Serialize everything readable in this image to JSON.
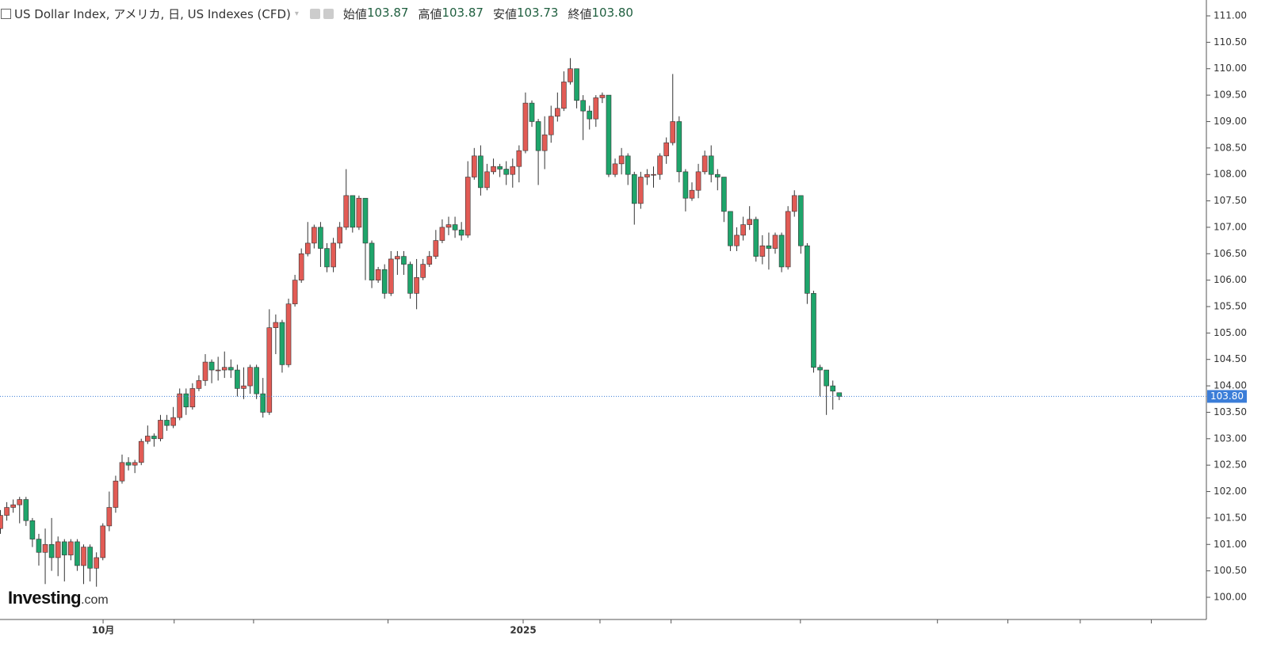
{
  "chart_data": {
    "type": "candlestick",
    "title": "US Dollar Index, アメリカ, 日, US Indexes (CFD)",
    "header_stats": [
      {
        "label": "始値",
        "value": "103.87"
      },
      {
        "label": "高値",
        "value": "103.87"
      },
      {
        "label": "安値",
        "value": "103.73"
      },
      {
        "label": "終値",
        "value": "103.80"
      }
    ],
    "logo": {
      "name": "Investing",
      "suffix": ".com"
    },
    "up_color": "#e25b55",
    "down_color": "#1ea56b",
    "last_price": {
      "value": 103.8,
      "label": "103.80"
    },
    "price_line_color": "#3b7dd8",
    "ylim": [
      99.58,
      111.3
    ],
    "yticks": [
      {
        "value": 100,
        "label": "100.00"
      },
      {
        "value": 100.5,
        "label": "100.50"
      },
      {
        "value": 101,
        "label": "101.00"
      },
      {
        "value": 101.5,
        "label": "101.50"
      },
      {
        "value": 102,
        "label": "102.00"
      },
      {
        "value": 102.5,
        "label": "102.50"
      },
      {
        "value": 103,
        "label": "103.00"
      },
      {
        "value": 103.5,
        "label": "103.50"
      },
      {
        "value": 104,
        "label": "104.00"
      },
      {
        "value": 104.5,
        "label": "104.50"
      },
      {
        "value": 105,
        "label": "105.00"
      },
      {
        "value": 105.5,
        "label": "105.50"
      },
      {
        "value": 106,
        "label": "106.00"
      },
      {
        "value": 106.5,
        "label": "106.50"
      },
      {
        "value": 107,
        "label": "107.00"
      },
      {
        "value": 107.5,
        "label": "107.50"
      },
      {
        "value": 108,
        "label": "108.00"
      },
      {
        "value": 108.5,
        "label": "108.50"
      },
      {
        "value": 109,
        "label": "109.00"
      },
      {
        "value": 109.5,
        "label": "109.50"
      },
      {
        "value": 110,
        "label": "110.00"
      },
      {
        "value": 110.5,
        "label": "110.50"
      },
      {
        "value": 111,
        "label": "111.00"
      }
    ],
    "xlim": [
      0,
      188.4
    ],
    "xticks": [
      {
        "value": 16.1,
        "label": "10月"
      },
      {
        "value": 81.7,
        "label": "2025"
      }
    ],
    "minor_xticks": [
      27.2,
      39.6,
      60.6,
      93.7,
      104.8,
      125,
      146.4,
      157.4,
      168.7,
      179.8
    ],
    "open": [
      101.3,
      101.55,
      101.7,
      101.75,
      101.85,
      101.45,
      101.1,
      100.85,
      101.0,
      100.75,
      101.05,
      100.8,
      101.05,
      100.6,
      100.95,
      100.55,
      100.75,
      101.35,
      101.7,
      102.2,
      102.55,
      102.5,
      102.55,
      102.95,
      103.05,
      103.0,
      103.35,
      103.25,
      103.4,
      103.85,
      103.6,
      103.95,
      104.1,
      104.45,
      104.3,
      104.3,
      104.35,
      104.3,
      103.95,
      104.0,
      104.35,
      103.85,
      103.5,
      105.1,
      105.2,
      104.4,
      105.55,
      106.0,
      106.5,
      106.7,
      107.0,
      106.6,
      106.25,
      106.7,
      107.0,
      107.6,
      107.0,
      107.55,
      106.7,
      106.0,
      106.2,
      105.75,
      106.4,
      106.45,
      106.3,
      105.75,
      106.05,
      106.3,
      106.45,
      106.75,
      107.0,
      107.05,
      106.95,
      106.85,
      107.95,
      108.35,
      107.75,
      108.05,
      108.15,
      108.1,
      108.0,
      108.15,
      108.45,
      109.35,
      109.0,
      108.45,
      108.75,
      109.1,
      109.25,
      109.75,
      110.0,
      109.4,
      109.2,
      109.05,
      109.45,
      109.5,
      108.0,
      108.2,
      108.35,
      108.0,
      107.45,
      107.95,
      108.0,
      108.0,
      108.35,
      108.6,
      109.0,
      108.05,
      107.55,
      107.7,
      108.05,
      108.35,
      108.0,
      107.95,
      107.3,
      106.65,
      106.85,
      107.05,
      107.15,
      106.45,
      106.65,
      106.6,
      106.85,
      106.25,
      107.3,
      107.6,
      106.65,
      105.75,
      104.35,
      104.3,
      104.0,
      103.87
    ],
    "high": [
      101.65,
      101.8,
      101.85,
      101.9,
      101.9,
      101.5,
      101.2,
      101.3,
      101.5,
      101.15,
      101.1,
      101.1,
      101.1,
      101.0,
      101.0,
      100.85,
      101.4,
      102.0,
      102.3,
      102.7,
      102.65,
      102.6,
      103.0,
      103.25,
      103.1,
      103.45,
      103.45,
      103.6,
      103.95,
      103.95,
      104.05,
      104.2,
      104.6,
      104.5,
      104.55,
      104.65,
      104.5,
      104.4,
      104.35,
      104.4,
      104.4,
      104.15,
      105.45,
      105.35,
      105.25,
      105.65,
      106.1,
      106.6,
      107.1,
      107.05,
      107.1,
      106.7,
      106.8,
      107.1,
      108.1,
      107.6,
      107.6,
      107.55,
      106.75,
      106.25,
      106.3,
      106.55,
      106.55,
      106.55,
      106.35,
      106.4,
      106.4,
      106.55,
      106.95,
      107.15,
      107.2,
      107.2,
      107.1,
      108.25,
      108.5,
      108.55,
      108.2,
      108.3,
      108.2,
      108.25,
      108.3,
      108.55,
      109.55,
      109.4,
      109.05,
      109.1,
      109.3,
      109.55,
      109.95,
      110.2,
      110.0,
      109.5,
      109.3,
      109.5,
      109.55,
      109.5,
      108.3,
      108.5,
      108.4,
      108.05,
      108.05,
      108.1,
      108.15,
      108.4,
      108.7,
      109.9,
      109.1,
      108.1,
      107.85,
      108.2,
      108.45,
      108.55,
      108.1,
      107.95,
      107.3,
      107.0,
      107.2,
      107.4,
      107.2,
      106.85,
      106.9,
      106.9,
      106.9,
      107.4,
      107.7,
      107.6,
      106.7,
      105.8,
      104.4,
      104.3,
      104.1,
      103.87
    ],
    "low": [
      101.2,
      101.45,
      101.6,
      101.4,
      101.35,
      100.95,
      100.6,
      100.25,
      100.5,
      100.4,
      100.3,
      100.7,
      100.5,
      100.25,
      100.3,
      100.2,
      100.7,
      101.25,
      101.6,
      102.15,
      102.4,
      102.35,
      102.5,
      102.9,
      102.85,
      102.95,
      103.15,
      103.2,
      103.35,
      103.45,
      103.55,
      103.9,
      104.0,
      104.05,
      104.1,
      104.15,
      104.15,
      103.8,
      103.75,
      103.85,
      103.75,
      103.4,
      103.45,
      104.6,
      104.25,
      104.35,
      105.5,
      105.95,
      106.45,
      106.6,
      106.25,
      106.15,
      106.15,
      106.6,
      106.95,
      106.9,
      106.95,
      106.0,
      105.85,
      105.95,
      105.65,
      105.7,
      106.1,
      106.1,
      105.65,
      105.45,
      106.0,
      106.25,
      106.4,
      106.7,
      106.85,
      106.8,
      106.75,
      106.8,
      107.9,
      107.6,
      107.7,
      108.0,
      107.95,
      107.8,
      107.75,
      107.85,
      108.4,
      108.9,
      107.8,
      108.1,
      108.6,
      109.0,
      109.2,
      109.7,
      109.25,
      108.65,
      108.85,
      108.9,
      109.35,
      107.95,
      107.95,
      108.0,
      107.8,
      107.05,
      107.35,
      107.8,
      107.75,
      107.9,
      108.2,
      108.55,
      107.85,
      107.3,
      107.5,
      107.55,
      108.0,
      107.85,
      107.7,
      107.1,
      106.55,
      106.55,
      106.75,
      106.95,
      106.35,
      106.3,
      106.2,
      106.5,
      106.15,
      106.2,
      107.2,
      106.5,
      105.55,
      104.25,
      103.8,
      103.45,
      103.55,
      103.73
    ],
    "close": [
      101.55,
      101.7,
      101.75,
      101.85,
      101.45,
      101.1,
      100.85,
      101.0,
      100.75,
      101.05,
      100.8,
      101.05,
      100.6,
      100.95,
      100.55,
      100.75,
      101.35,
      101.7,
      102.2,
      102.55,
      102.5,
      102.55,
      102.95,
      103.05,
      103.0,
      103.35,
      103.25,
      103.4,
      103.85,
      103.6,
      103.95,
      104.1,
      104.45,
      104.3,
      104.3,
      104.35,
      104.3,
      103.95,
      104.0,
      104.35,
      103.85,
      103.5,
      105.1,
      105.2,
      104.4,
      105.55,
      106.0,
      106.5,
      106.7,
      107.0,
      106.6,
      106.25,
      106.7,
      107.0,
      107.6,
      107.0,
      107.55,
      106.7,
      106.0,
      106.2,
      105.75,
      106.4,
      106.45,
      106.3,
      105.75,
      106.05,
      106.3,
      106.45,
      106.75,
      107.0,
      107.05,
      106.95,
      106.85,
      107.95,
      108.35,
      107.75,
      108.05,
      108.15,
      108.1,
      108.0,
      108.15,
      108.45,
      109.35,
      109.0,
      108.45,
      108.75,
      109.1,
      109.25,
      109.75,
      110.0,
      109.4,
      109.2,
      109.05,
      109.45,
      109.5,
      108.0,
      108.2,
      108.35,
      108.0,
      107.45,
      107.95,
      108.0,
      108.0,
      108.35,
      108.6,
      109.0,
      108.05,
      107.55,
      107.7,
      108.05,
      108.35,
      108.0,
      107.95,
      107.3,
      106.65,
      106.85,
      107.05,
      107.15,
      106.45,
      106.65,
      106.6,
      106.85,
      106.25,
      107.3,
      107.6,
      106.65,
      105.75,
      104.35,
      104.3,
      104.0,
      103.9,
      103.8
    ]
  }
}
